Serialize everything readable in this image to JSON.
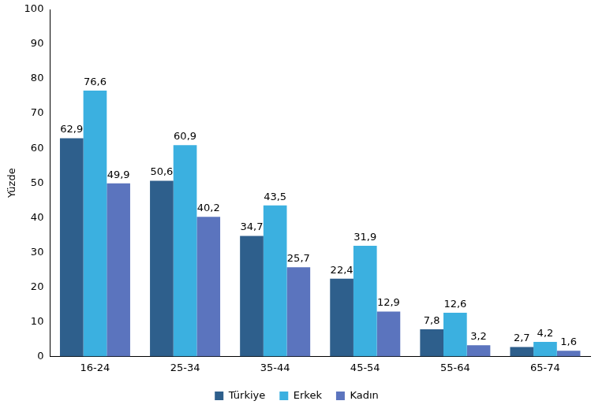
{
  "chart_data": {
    "type": "bar",
    "y_label": "Yüzde",
    "categories": [
      "16-24",
      "25-34",
      "35-44",
      "45-54",
      "55-64",
      "65-74"
    ],
    "series": [
      {
        "name": "Türkiye",
        "color": "#2e5f8c",
        "values": [
          62.9,
          50.6,
          34.7,
          22.4,
          7.8,
          2.7
        ],
        "value_labels": [
          "62,9",
          "50,6",
          "34,7",
          "22,4",
          "7,8",
          "2,7"
        ]
      },
      {
        "name": "Erkek",
        "color": "#3bb0e0",
        "values": [
          76.6,
          60.9,
          43.5,
          31.9,
          12.6,
          4.2
        ],
        "value_labels": [
          "76,6",
          "60,9",
          "43,5",
          "31,9",
          "12,6",
          "4,2"
        ]
      },
      {
        "name": "Kadın",
        "color": "#5b74be",
        "values": [
          49.9,
          40.2,
          25.7,
          12.9,
          3.2,
          1.6
        ],
        "value_labels": [
          "49,9",
          "40,2",
          "25,7",
          "12,9",
          "3,2",
          "1,6"
        ]
      }
    ],
    "ylim": [
      0,
      100
    ],
    "yticks": [
      0,
      10,
      20,
      30,
      40,
      50,
      60,
      70,
      80,
      90,
      100
    ],
    "grid": false,
    "legend": "bottom",
    "data_labels": true
  }
}
